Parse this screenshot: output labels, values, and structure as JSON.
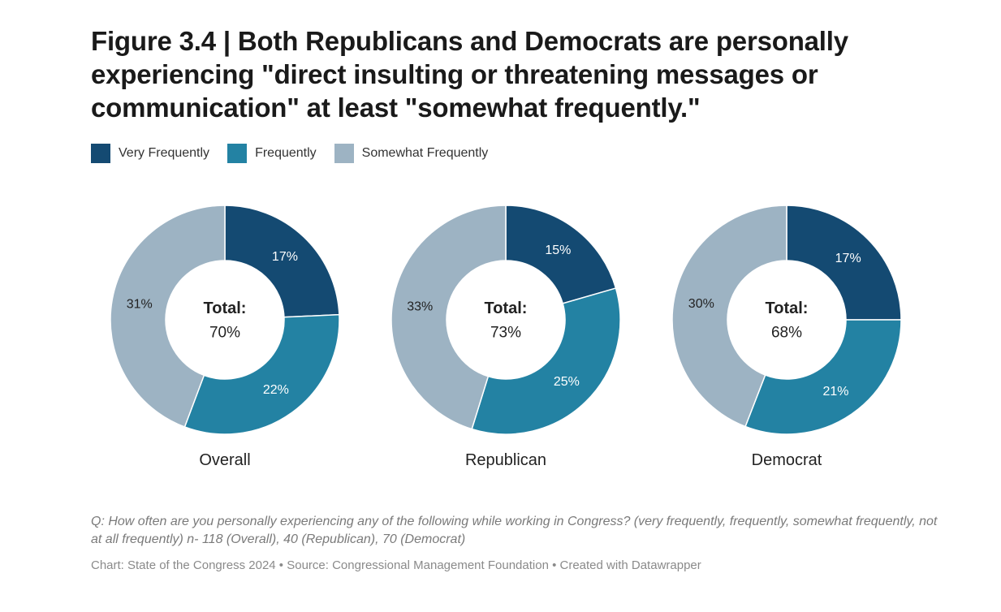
{
  "title": "Figure 3.4 | Both Republicans and Democrats are personally experiencing \"direct insulting or threatening messages or communication\" at least \"somewhat frequently.\"",
  "legend": [
    {
      "label": "Very Frequently",
      "color": "#144a72"
    },
    {
      "label": "Frequently",
      "color": "#2382a3"
    },
    {
      "label": "Somewhat Frequently",
      "color": "#9db3c3"
    }
  ],
  "chart_data": [
    {
      "type": "pie",
      "variant": "donut",
      "title": "Overall",
      "center_label": "Total:",
      "center_value": "70%",
      "categories": [
        "Very Frequently",
        "Frequently",
        "Somewhat Frequently"
      ],
      "values": [
        17,
        22,
        31
      ],
      "labels": [
        "17%",
        "22%",
        "31%"
      ]
    },
    {
      "type": "pie",
      "variant": "donut",
      "title": "Republican",
      "center_label": "Total:",
      "center_value": "73%",
      "categories": [
        "Very Frequently",
        "Frequently",
        "Somewhat Frequently"
      ],
      "values": [
        15,
        25,
        33
      ],
      "labels": [
        "15%",
        "25%",
        "33%"
      ]
    },
    {
      "type": "pie",
      "variant": "donut",
      "title": "Democrat",
      "center_label": "Total:",
      "center_value": "68%",
      "categories": [
        "Very Frequently",
        "Frequently",
        "Somewhat Frequently"
      ],
      "values": [
        17,
        21,
        30
      ],
      "labels": [
        "17%",
        "21%",
        "30%"
      ]
    }
  ],
  "footer": {
    "note": "Q: How often are you personally experiencing any of the following while working in Congress? (very frequently, frequently, somewhat frequently, not at all frequently) n- 118 (Overall), 40 (Republican), 70 (Democrat)",
    "source": "Chart: State of the Congress 2024 • Source: Congressional Management Foundation • Created with Datawrapper"
  }
}
